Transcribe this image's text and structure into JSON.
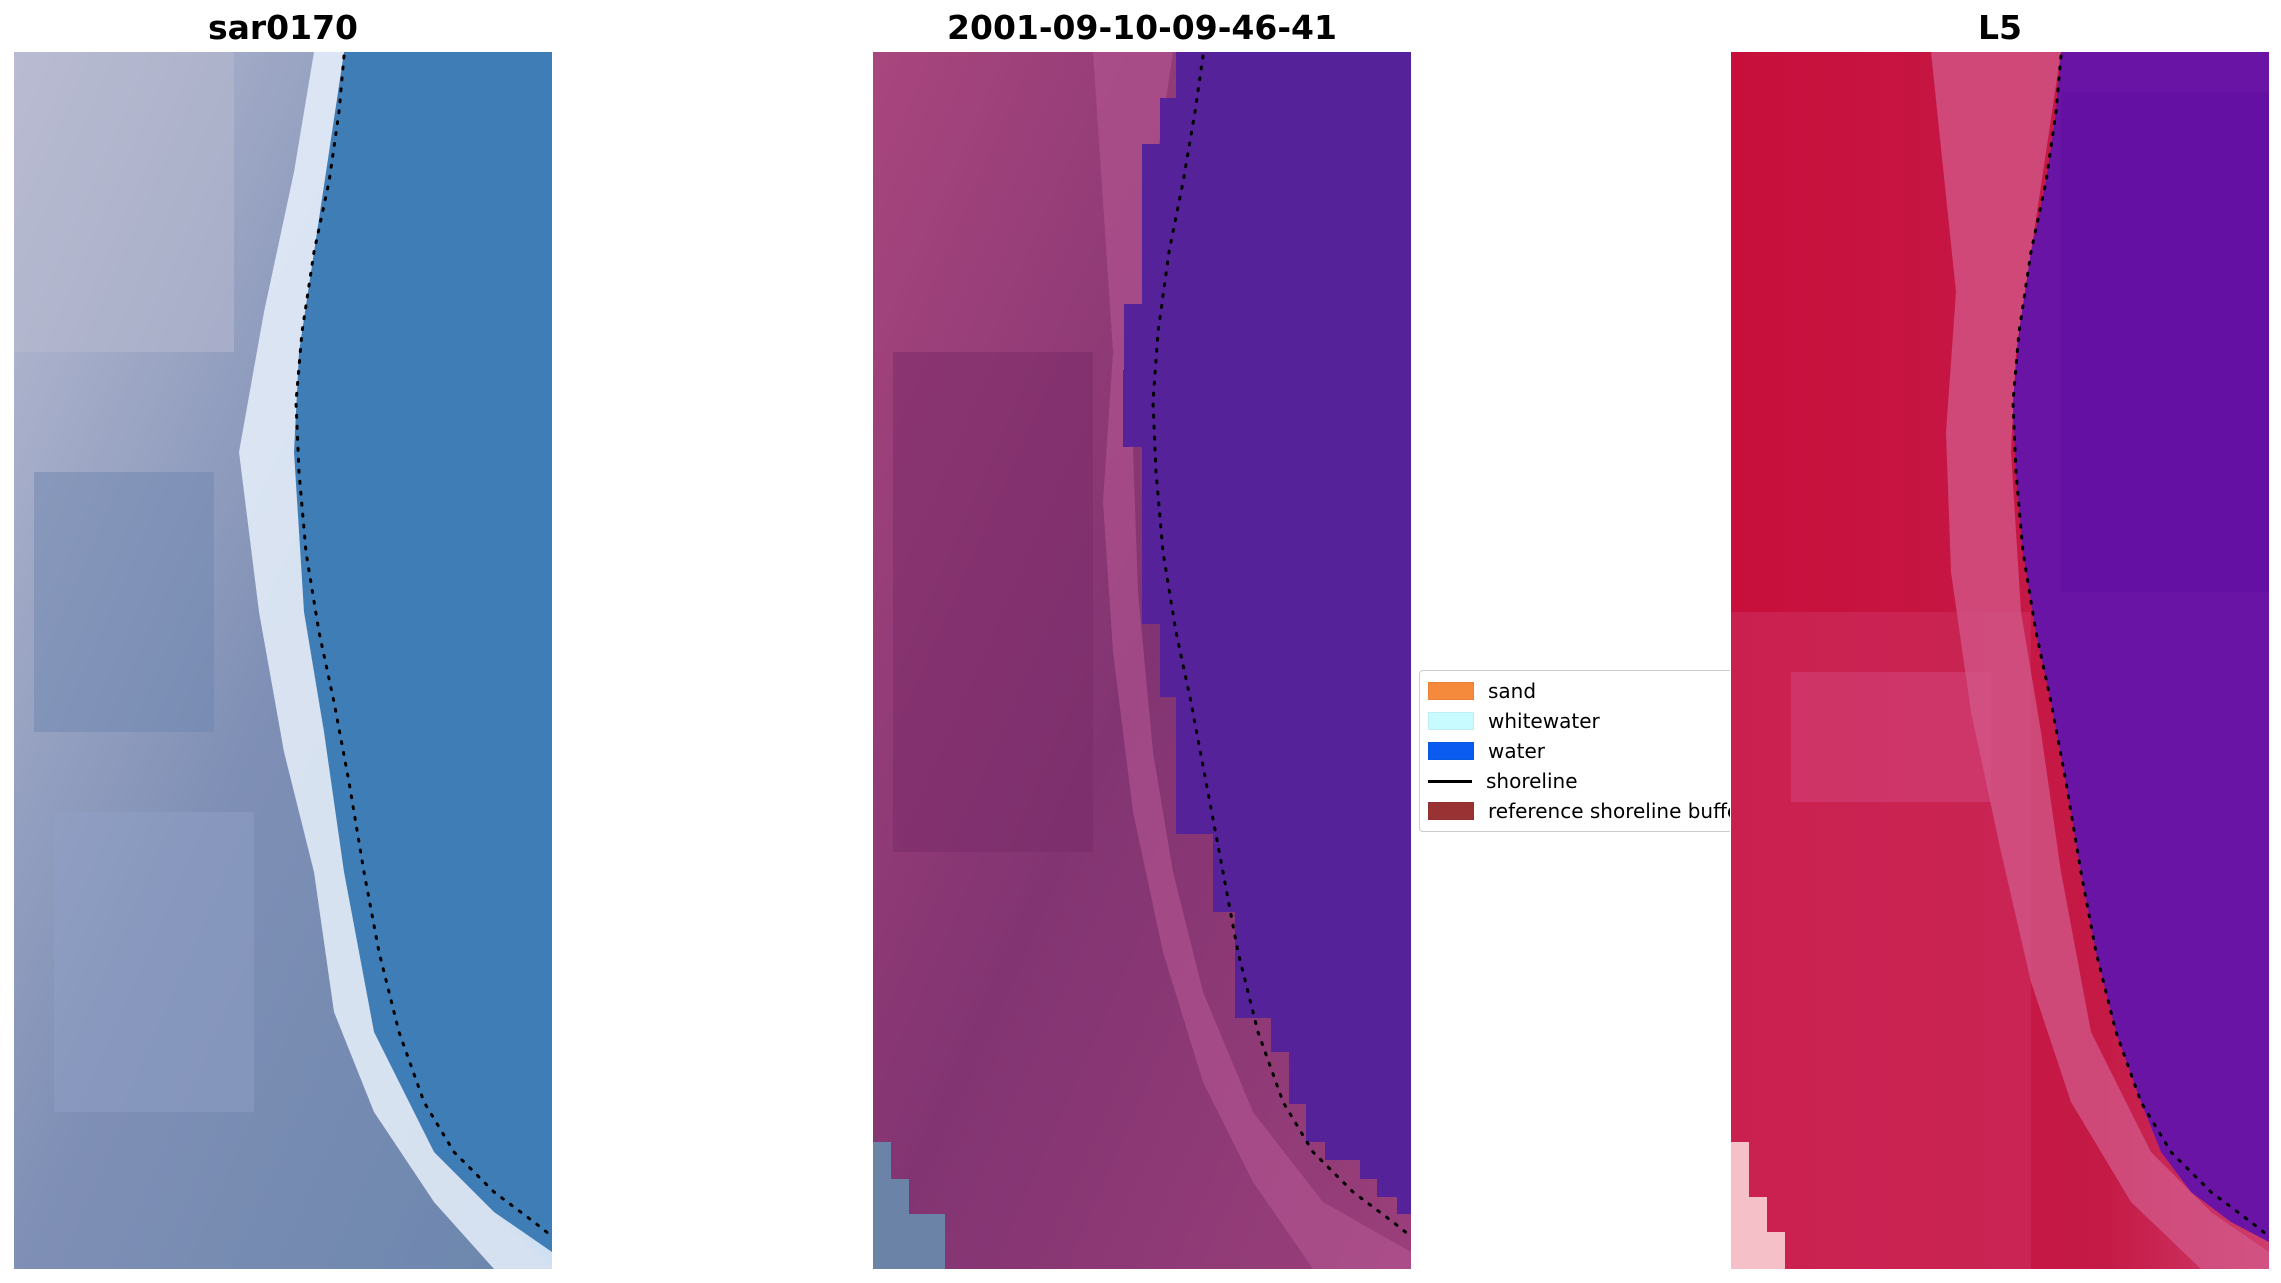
{
  "panels": [
    {
      "id": "sar",
      "title": "sar0170"
    },
    {
      "id": "classified",
      "title": "2001-09-10-09-46-41"
    },
    {
      "id": "index",
      "title": "L5"
    }
  ],
  "legend": {
    "items": [
      {
        "label": "sand",
        "kind": "patch",
        "color": "#f58a3c"
      },
      {
        "label": "whitewater",
        "kind": "patch",
        "color": "#c8fbff"
      },
      {
        "label": "water",
        "kind": "patch",
        "color": "#0a5cf0"
      },
      {
        "label": "shoreline",
        "kind": "line",
        "color": "#000000"
      },
      {
        "label": "reference shoreline buffer",
        "kind": "patch",
        "color": "#993333"
      }
    ]
  },
  "colors": {
    "sar_land": "#8d97b8",
    "sar_water": "#4a7fb5",
    "sar_whitewater": "#eef4fb",
    "class_land": "#8a3a74",
    "class_water": "#55229a",
    "index_land": "#c4183e",
    "index_water": "#6a14a6",
    "shoreline_dots": "#000000"
  }
}
